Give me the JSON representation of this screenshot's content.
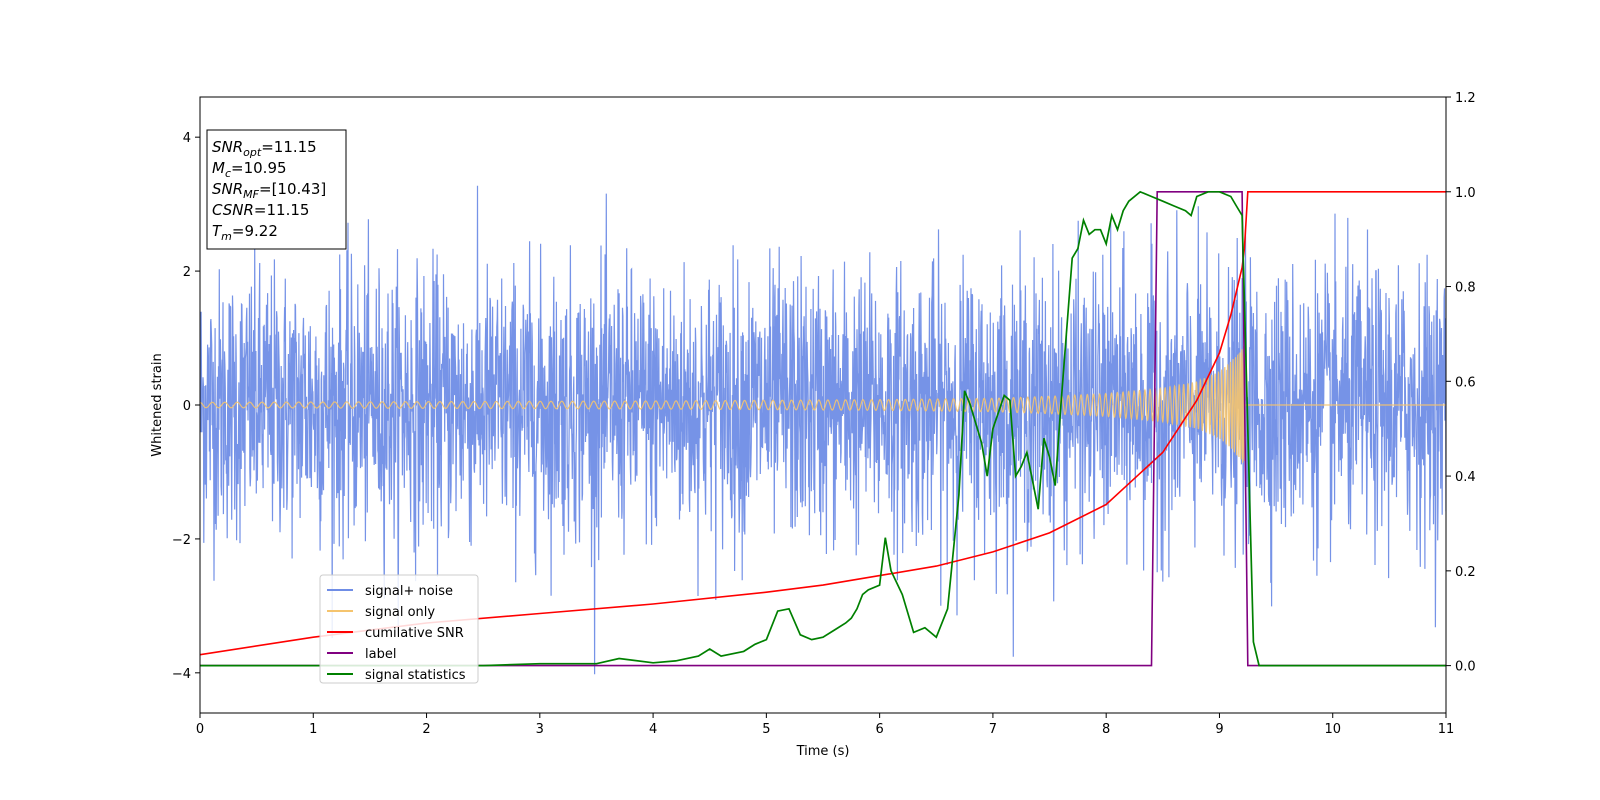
{
  "chart_data": {
    "type": "line",
    "xlabel": "Time (s)",
    "ylabel_left": "Whitened strain",
    "ylabel_right": "",
    "xlim": [
      0,
      11
    ],
    "ylim_left": [
      -4.6,
      4.6
    ],
    "ylim_right": [
      -0.1,
      1.2
    ],
    "x_ticks": [
      0,
      1,
      2,
      3,
      4,
      5,
      6,
      7,
      8,
      9,
      10,
      11
    ],
    "y_left_ticks": [
      -4,
      -2,
      0,
      2,
      4
    ],
    "y_right_ticks": [
      "0.0",
      "0.2",
      "0.4",
      "0.6",
      "0.8",
      "1.0",
      "1.2"
    ],
    "grid": false,
    "legend_position": "lower-left",
    "info_box": [
      {
        "base": "SNR",
        "sub": "opt",
        "value": "=11.15"
      },
      {
        "base": "M",
        "sub": "c",
        "value": "=10.95"
      },
      {
        "base": "SNR",
        "sub": "MF",
        "value": "=[10.43]"
      },
      {
        "base": "CSNR",
        "sub": "",
        "value": "=11.15"
      },
      {
        "base": "T",
        "sub": "m",
        "value": "=9.22"
      }
    ],
    "series": [
      {
        "name": "signal+ noise",
        "axis": "left",
        "color": "#6f8de6",
        "description_values": "whitened noise, std ~1.0, spread about +/-3"
      },
      {
        "name": "signal only",
        "axis": "left",
        "color": "#f5c46e",
        "envelope_x": [
          0,
          2,
          4,
          6,
          7,
          7.5,
          8,
          8.5,
          8.8,
          9.0,
          9.1,
          9.2,
          9.22
        ],
        "envelope_amplitude": [
          0.04,
          0.05,
          0.06,
          0.08,
          0.1,
          0.13,
          0.17,
          0.25,
          0.35,
          0.5,
          0.65,
          0.85,
          0.9
        ]
      },
      {
        "name": "cumilative SNR",
        "axis": "right",
        "color": "#ff0000",
        "x": [
          0,
          1,
          2,
          3,
          4,
          5,
          5.5,
          6,
          6.5,
          7,
          7.5,
          8,
          8.5,
          8.8,
          9.0,
          9.1,
          9.2,
          9.22,
          9.25,
          11
        ],
        "y": [
          0.023,
          0.06,
          0.09,
          0.11,
          0.13,
          0.155,
          0.17,
          0.19,
          0.21,
          0.24,
          0.28,
          0.34,
          0.45,
          0.56,
          0.66,
          0.74,
          0.84,
          0.88,
          1.0,
          1.0
        ]
      },
      {
        "name": "label",
        "axis": "right",
        "color": "#800080",
        "x": [
          0,
          8.4,
          8.45,
          9.2,
          9.25,
          11
        ],
        "y": [
          0,
          0,
          1,
          1,
          0,
          0
        ]
      },
      {
        "name": "signal statistics",
        "axis": "right",
        "color": "#008000",
        "x": [
          0,
          2.5,
          3,
          3.5,
          3.7,
          4,
          4.2,
          4.4,
          4.5,
          4.6,
          4.8,
          4.9,
          5,
          5.1,
          5.2,
          5.3,
          5.4,
          5.5,
          5.6,
          5.7,
          5.75,
          5.8,
          5.85,
          5.9,
          6.0,
          6.05,
          6.1,
          6.2,
          6.3,
          6.4,
          6.5,
          6.6,
          6.7,
          6.75,
          6.8,
          6.9,
          6.95,
          7.0,
          7.1,
          7.15,
          7.2,
          7.25,
          7.3,
          7.4,
          7.45,
          7.5,
          7.55,
          7.6,
          7.7,
          7.75,
          7.8,
          7.85,
          7.9,
          7.95,
          8.0,
          8.05,
          8.1,
          8.15,
          8.2,
          8.3,
          8.4,
          8.5,
          8.6,
          8.7,
          8.75,
          8.8,
          8.9,
          9.0,
          9.1,
          9.15,
          9.2,
          9.25,
          9.3,
          9.35,
          11
        ],
        "y": [
          0,
          0,
          0.004,
          0.004,
          0.015,
          0.006,
          0.01,
          0.02,
          0.035,
          0.02,
          0.03,
          0.045,
          0.055,
          0.115,
          0.12,
          0.065,
          0.055,
          0.06,
          0.075,
          0.09,
          0.1,
          0.12,
          0.15,
          0.16,
          0.17,
          0.27,
          0.2,
          0.15,
          0.07,
          0.08,
          0.06,
          0.12,
          0.36,
          0.58,
          0.55,
          0.47,
          0.4,
          0.5,
          0.57,
          0.56,
          0.4,
          0.42,
          0.45,
          0.33,
          0.48,
          0.44,
          0.38,
          0.55,
          0.86,
          0.88,
          0.94,
          0.91,
          0.92,
          0.92,
          0.89,
          0.95,
          0.92,
          0.96,
          0.98,
          1.0,
          0.99,
          0.98,
          0.97,
          0.96,
          0.95,
          0.99,
          1.0,
          1.0,
          0.99,
          0.97,
          0.95,
          0.5,
          0.05,
          0.0,
          0.0
        ]
      }
    ]
  }
}
